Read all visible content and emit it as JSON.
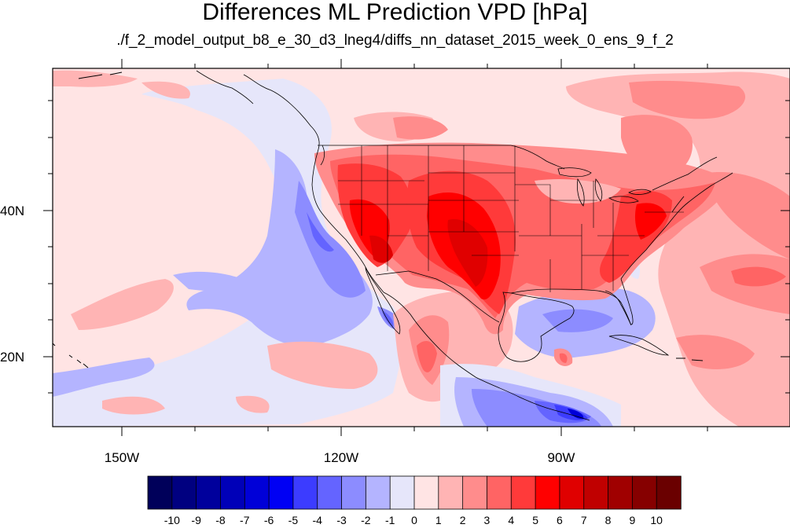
{
  "title": "Differences ML Prediction VPD [hPa]",
  "subtitle": "./f_2_model_output_b8_e_30_d3_lneg4/diffs_nn_dataset_2015_week_0_ens_9_f_2",
  "map": {
    "projection": "cylindrical equidistant",
    "lon_range": [
      -160.5,
      -62
    ],
    "lat_range": [
      10.5,
      59.5
    ],
    "lon_ticks": [
      {
        "value": -150,
        "label": "150W"
      },
      {
        "value": -120,
        "label": "120W"
      },
      {
        "value": -90,
        "label": "90W"
      }
    ],
    "lat_ticks": [
      {
        "value": 40,
        "label": "40N"
      },
      {
        "value": 20,
        "label": "20N"
      }
    ],
    "field": "VPD difference",
    "units": "hPa"
  },
  "colorbar": {
    "labels": [
      "-10",
      "-9",
      "-8",
      "-7",
      "-6",
      "-5",
      "-4",
      "-3",
      "-2",
      "-1",
      "0",
      "1",
      "2",
      "3",
      "4",
      "5",
      "6",
      "7",
      "8",
      "9",
      "10"
    ],
    "colors": [
      "#00005a",
      "#000080",
      "#00009c",
      "#0000b8",
      "#0000d8",
      "#0000f4",
      "#3c3cff",
      "#6464ff",
      "#8c8cff",
      "#b4b4ff",
      "#e6e6fa",
      "#ffe4e4",
      "#ffb4b4",
      "#ff8c8c",
      "#ff6464",
      "#ff3a3a",
      "#ff0000",
      "#e00000",
      "#c00000",
      "#a00000",
      "#860000",
      "#6a0000"
    ]
  }
}
